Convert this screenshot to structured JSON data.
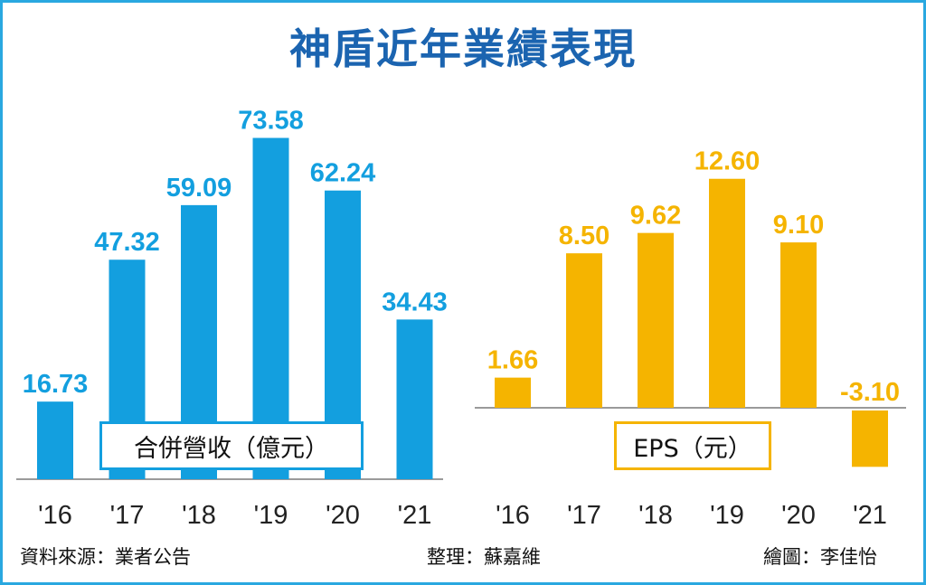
{
  "title": "神盾近年業績表現",
  "colors": {
    "revenue": "#139fdf",
    "eps": "#f5b400",
    "title": "#1b64b0",
    "border": "#29a8e0"
  },
  "chart_data": [
    {
      "type": "bar",
      "label": "合併營收（億元）",
      "categories": [
        "'16",
        "'17",
        "'18",
        "'19",
        "'20",
        "'21"
      ],
      "values": [
        16.73,
        47.32,
        59.09,
        73.58,
        62.24,
        34.43
      ],
      "value_labels": [
        "16.73",
        "47.32",
        "59.09",
        "73.58",
        "62.24",
        "34.43"
      ],
      "color": "#139fdf"
    },
    {
      "type": "bar",
      "label": "EPS（元）",
      "categories": [
        "'16",
        "'17",
        "'18",
        "'19",
        "'20",
        "'21"
      ],
      "values": [
        1.66,
        8.5,
        9.62,
        12.6,
        9.1,
        -3.1
      ],
      "value_labels": [
        "1.66",
        "8.50",
        "9.62",
        "12.60",
        "9.10",
        "-3.10"
      ],
      "color": "#f5b400"
    }
  ],
  "footer": {
    "source": "資料來源：業者公告",
    "editor": "整理：蘇嘉維",
    "artist": "繪圖：李佳怡"
  }
}
